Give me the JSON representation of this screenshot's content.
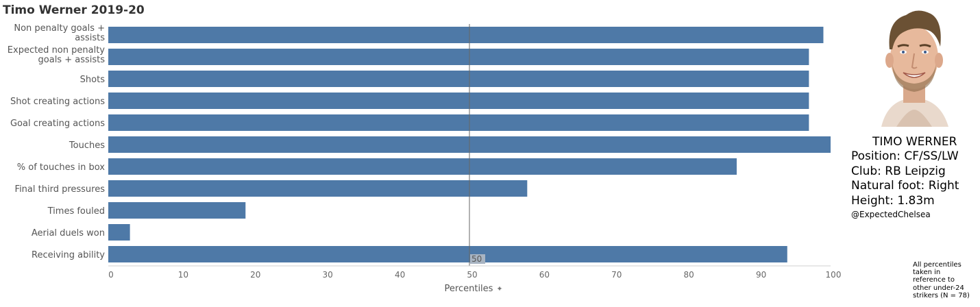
{
  "title": "Timo Werner 2019-20",
  "chart_data": {
    "type": "bar",
    "orientation": "horizontal",
    "categories": [
      [
        "Non penalty goals +",
        "assists"
      ],
      [
        "Expected non penalty",
        "goals + assists"
      ],
      [
        "Shots"
      ],
      [
        "Shot creating actions"
      ],
      [
        "Goal creating actions"
      ],
      [
        "Touches"
      ],
      [
        "% of touches in box"
      ],
      [
        "Final third pressures"
      ],
      [
        "Times fouled"
      ],
      [
        "Aerial duels won"
      ],
      [
        "Receiving ability"
      ]
    ],
    "values": [
      99,
      97,
      97,
      97,
      97,
      100,
      87,
      58,
      19,
      3,
      94
    ],
    "xlabel": "Percentiles",
    "xlim": [
      0,
      100
    ],
    "xticks": [
      "0",
      "10",
      "20",
      "30",
      "40",
      "50",
      "60",
      "70",
      "80",
      "90",
      "100"
    ],
    "reference_line": {
      "value": 50,
      "label": "50"
    },
    "bar_color": "#4e79a7",
    "grid": false
  },
  "profile": {
    "name": "TIMO WERNER",
    "position": "Position: CF/SS/LW",
    "club": "Club: RB Leipzig",
    "foot": "Natural foot: Right",
    "height": "Height: 1.83m",
    "credit": "@ExpectedChelsea"
  },
  "footnote": [
    "All percentiles",
    "taken in",
    "reference to",
    "other under-24",
    "strikers (N = 78)"
  ]
}
